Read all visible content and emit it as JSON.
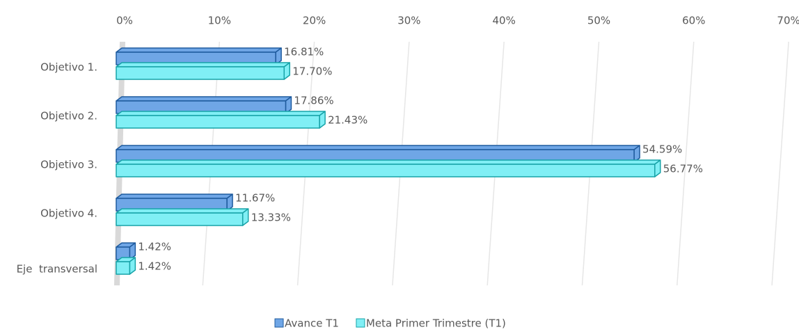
{
  "chart_data": {
    "type": "bar",
    "orientation": "horizontal",
    "categories": [
      "Objetivo 1.",
      "Objetivo 2.",
      "Objetivo 3.",
      "Objetivo 4.",
      "Eje  transversal"
    ],
    "series": [
      {
        "name": "Avance T1",
        "color": "#6fa6e6",
        "edge": "#1f5b9e",
        "values": [
          16.81,
          17.86,
          54.59,
          11.67,
          1.42
        ],
        "value_labels": [
          "16.81%",
          "17.86%",
          "54.59%",
          "11.67%",
          "1.42%"
        ]
      },
      {
        "name": "Meta Primer Trimestre (T1)",
        "color": "#80eff5",
        "edge": "#17a3a8",
        "values": [
          17.7,
          21.43,
          56.77,
          13.33,
          1.42
        ],
        "value_labels": [
          "17.70%",
          "21.43%",
          "56.77%",
          "13.33%",
          "1.42%"
        ]
      }
    ],
    "xlim": [
      0,
      70
    ],
    "xticks": [
      {
        "value": 0,
        "label": "0%"
      },
      {
        "value": 10,
        "label": "10%"
      },
      {
        "value": 20,
        "label": "20%"
      },
      {
        "value": 30,
        "label": "30%"
      },
      {
        "value": 40,
        "label": "40%"
      },
      {
        "value": 50,
        "label": "50%"
      },
      {
        "value": 60,
        "label": "60%"
      },
      {
        "value": 70,
        "label": "70%"
      }
    ],
    "grid": true,
    "legend": "bottom"
  }
}
